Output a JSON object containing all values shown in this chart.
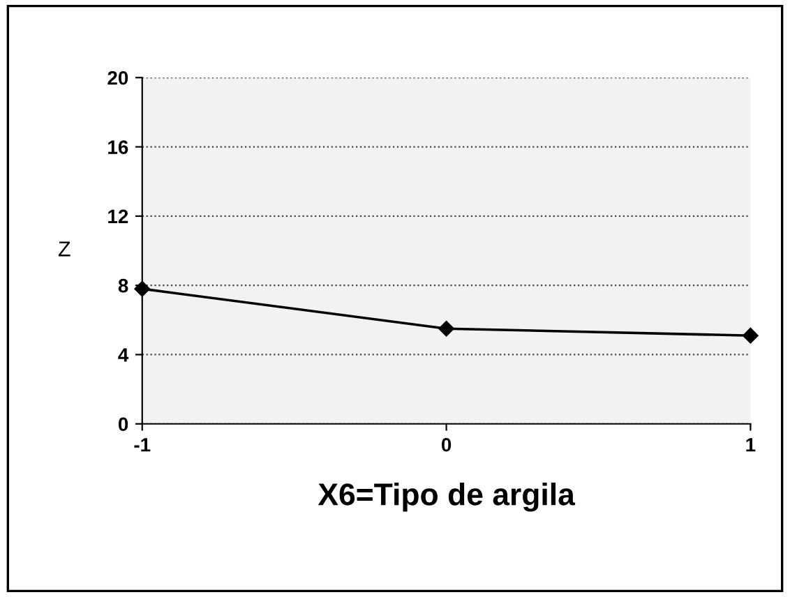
{
  "chart_data": {
    "type": "line",
    "xlabel": "X6=Tipo de argila",
    "ylabel": "Z",
    "x": [
      -1,
      0,
      1
    ],
    "series": [
      {
        "color": "#000000",
        "values": [
          7.8,
          5.5,
          5.1
        ]
      }
    ],
    "xlim": [
      -1,
      1
    ],
    "xticks": [
      -1,
      0,
      1
    ],
    "ylim": [
      0,
      20
    ],
    "yticks": [
      0,
      4,
      8,
      12,
      16,
      20
    ],
    "grid": "y",
    "marker": "diamond",
    "line_style": "solid",
    "legend": false
  }
}
